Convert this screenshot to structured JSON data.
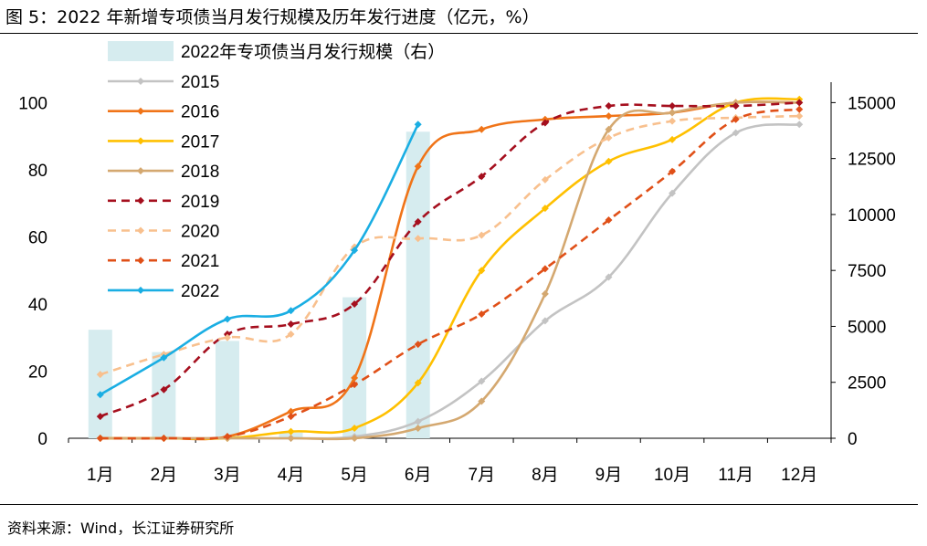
{
  "header": {
    "title": "图 5：2022 年新增专项债当月发行规模及历年发行进度（亿元，%）"
  },
  "footer": {
    "source": "资料来源：Wind，长江证券研究所"
  },
  "chart_data": {
    "type": "bar+line",
    "title": "2022 年新增专项债当月发行规模及历年发行进度（亿元，%）",
    "categories": [
      "1月",
      "2月",
      "3月",
      "4月",
      "5月",
      "6月",
      "7月",
      "8月",
      "9月",
      "10月",
      "11月",
      "12月"
    ],
    "left_axis": {
      "ylim": [
        0,
        105
      ],
      "ticks": [
        0,
        20,
        40,
        60,
        80,
        100
      ]
    },
    "right_axis": {
      "ylim": [
        0,
        15750
      ],
      "ticks": [
        0,
        2500,
        5000,
        7500,
        10000,
        12500,
        15000
      ]
    },
    "bar_series": {
      "name": "2022年专项债当月发行规模（右）",
      "axis": "right",
      "color": "#d6ecef",
      "values": [
        4850,
        3850,
        4350,
        250,
        6300,
        13700,
        null,
        null,
        null,
        null,
        null,
        null
      ]
    },
    "series": [
      {
        "name": "2015",
        "color": "#c3c3c3",
        "style": "solid",
        "values": [
          0,
          0,
          0,
          0,
          0.5,
          5,
          17,
          35,
          48,
          73,
          91,
          93.5
        ]
      },
      {
        "name": "2016",
        "color": "#f07418",
        "style": "solid",
        "values": [
          0,
          0,
          0.5,
          8,
          18,
          81,
          92,
          95,
          96,
          97,
          100,
          100
        ]
      },
      {
        "name": "2017",
        "color": "#ffc000",
        "style": "solid",
        "values": [
          0,
          0,
          0,
          2,
          3,
          16.5,
          50,
          68.5,
          82.5,
          89,
          100,
          101
        ]
      },
      {
        "name": "2018",
        "color": "#d4a870",
        "style": "solid",
        "values": [
          0,
          0,
          0,
          0,
          0,
          3,
          11,
          43,
          92,
          97,
          100,
          100
        ]
      },
      {
        "name": "2019",
        "color": "#a50f1e",
        "style": "dashed",
        "values": [
          6.5,
          14.5,
          31,
          34,
          40,
          64.5,
          78,
          94,
          99,
          99,
          99,
          100
        ]
      },
      {
        "name": "2020",
        "color": "#f8c08e",
        "style": "dashed",
        "values": [
          19,
          25,
          30,
          31,
          57,
          59.5,
          60.5,
          77,
          89.5,
          94.5,
          95.5,
          96
        ]
      },
      {
        "name": "2021",
        "color": "#e05018",
        "style": "dashed",
        "values": [
          0,
          0,
          0.5,
          6.5,
          16,
          28,
          37,
          50.5,
          65,
          79.5,
          95,
          98
        ]
      },
      {
        "name": "2022",
        "color": "#1aaee3",
        "style": "solid",
        "values": [
          13,
          24,
          35.5,
          38,
          56,
          93.5,
          null,
          null,
          null,
          null,
          null,
          null
        ]
      }
    ],
    "legend_position": "top-left"
  }
}
